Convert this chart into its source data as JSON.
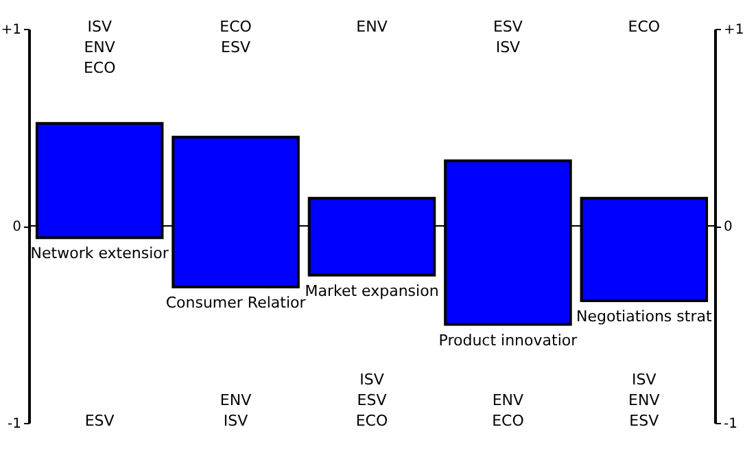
{
  "chart_data": {
    "type": "bar",
    "categories": [
      "Network extensior",
      "Consumer Relatior",
      "Market expansion",
      "Product innovatior",
      "Negotiations strat"
    ],
    "base": [
      -0.06,
      -0.31,
      -0.25,
      -0.5,
      -0.38
    ],
    "values": [
      0.58,
      0.76,
      0.39,
      0.83,
      0.52
    ],
    "color": "#0000ff",
    "ylim": [
      -1,
      1
    ],
    "yticks": [
      {
        "value": -1,
        "label": "-1"
      },
      0,
      {
        "value": 1,
        "label": "+1"
      }
    ],
    "y2lim": [
      -1,
      1
    ],
    "y2ticks": [
      {
        "value": -1,
        "label": "-1"
      },
      0,
      {
        "value": 1,
        "label": "+1"
      }
    ],
    "ref_lines": [
      {
        "axis": "y2",
        "value": 0,
        "color": "#000000"
      }
    ],
    "annotations": [
      "ISV\nENV\nECO",
      "ECO\nESV",
      "ENV",
      "ESV\nISV",
      "ECO",
      "ESV",
      "ENV\nISV",
      "ISV\nESV\nECO",
      "ENV\nECO",
      "ISV\nENV\nESV"
    ],
    "grid": false
  }
}
